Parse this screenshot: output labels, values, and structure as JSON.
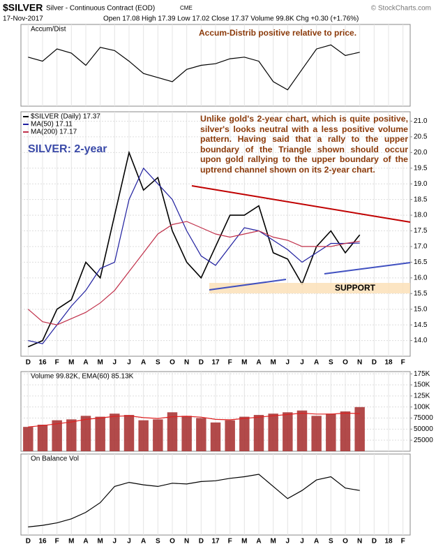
{
  "header": {
    "symbol": "$SILVER",
    "name": "Silver - Continuous Contract (EOD)",
    "exchange": "CME",
    "credit": "© StockCharts.com",
    "date": "17-Nov-2017",
    "quote": "Open 17.08  High 17.39  Low 17.02  Close 17.37  Volume 99.8K  Chg +0.30 (+1.76%)"
  },
  "chart_data": [
    {
      "type": "line",
      "title": "Accum/Dist",
      "annotations": [
        "Accum-Distrib positive relative to price."
      ],
      "ylim": [
        0,
        100
      ],
      "series": [
        {
          "color": "#000000",
          "values": [
            60,
            55,
            70,
            65,
            50,
            72,
            68,
            55,
            40,
            35,
            30,
            45,
            50,
            52,
            58,
            60,
            55,
            30,
            20,
            45,
            70,
            75,
            62,
            66,
            null,
            null,
            null
          ]
        }
      ]
    },
    {
      "type": "line",
      "annotations": [
        "SILVER: 2-year",
        "SUPPORT",
        "Unlike gold's 2-year chart, which is quite positive, silver's looks neutral with a less positive volume pattern. Having said that a rally to the upper boundary of the Triangle shown should occur upon gold rallying to the upper boundary of the uptrend channel shown on its 2-year chart."
      ],
      "categories": [
        "D",
        "16",
        "F",
        "M",
        "A",
        "M",
        "J",
        "J",
        "A",
        "S",
        "O",
        "N",
        "D",
        "17",
        "F",
        "M",
        "A",
        "M",
        "J",
        "J",
        "A",
        "S",
        "O",
        "N",
        "D",
        "18",
        "F"
      ],
      "ylim": [
        13.5,
        21.3
      ],
      "grid": true,
      "yticks": [
        {
          "value": 14,
          "label": "14.0"
        },
        14.5,
        {
          "value": 15,
          "label": "15.0"
        },
        15.5,
        {
          "value": 16,
          "label": "16.0"
        },
        16.5,
        {
          "value": 17,
          "label": "17.0"
        },
        17.5,
        {
          "value": 18,
          "label": "18.0"
        },
        18.5,
        {
          "value": 19,
          "label": "19.0"
        },
        19.5,
        {
          "value": 20,
          "label": "20.0"
        },
        20.5,
        {
          "value": 21,
          "label": "21.0"
        }
      ],
      "series": [
        {
          "name": "$SILVER (Daily) 17.37",
          "color": "#000000",
          "values": [
            13.8,
            14.0,
            15.0,
            15.3,
            16.5,
            16.0,
            18.0,
            20.0,
            18.8,
            19.2,
            17.5,
            16.5,
            16.0,
            17.0,
            18.0,
            18.0,
            18.3,
            16.8,
            16.6,
            15.8,
            17.0,
            17.5,
            16.8,
            17.37,
            null,
            null,
            null
          ]
        },
        {
          "name": "MA(50) 17.11",
          "color": "#1f1f9f",
          "values": [
            14.0,
            13.9,
            14.5,
            15.1,
            15.6,
            16.3,
            16.5,
            18.5,
            19.5,
            19.0,
            18.5,
            17.5,
            16.7,
            16.4,
            17.0,
            17.6,
            17.5,
            17.2,
            16.9,
            16.5,
            16.8,
            17.1,
            17.1,
            17.11,
            null,
            null,
            null
          ]
        },
        {
          "name": "MA(200) 17.17",
          "color": "#c0304a",
          "values": [
            15.0,
            14.6,
            14.5,
            14.7,
            14.9,
            15.2,
            15.6,
            16.2,
            16.8,
            17.4,
            17.7,
            17.8,
            17.6,
            17.4,
            17.3,
            17.4,
            17.5,
            17.3,
            17.2,
            17.0,
            17.0,
            17.0,
            17.1,
            17.17,
            null,
            null,
            null
          ]
        }
      ]
    },
    {
      "type": "bar",
      "title": "Volume 99.82K, EMA(60) 85.13K",
      "ylim": [
        0,
        180000
      ],
      "grid": true,
      "yticks": [
        25000,
        50000,
        75000,
        {
          "value": 100000,
          "label": "100K"
        },
        {
          "value": 125000,
          "label": "125K"
        },
        {
          "value": 150000,
          "label": "150K"
        },
        {
          "value": 175000,
          "label": "175K"
        }
      ],
      "series": [
        {
          "type": "bar",
          "color": "#a52a2a",
          "values": [
            55000,
            60000,
            70000,
            72000,
            80000,
            78000,
            85000,
            82000,
            70000,
            72000,
            88000,
            80000,
            75000,
            65000,
            70000,
            78000,
            82000,
            85000,
            88000,
            92000,
            80000,
            85000,
            90000,
            99820,
            null,
            null,
            null
          ]
        },
        {
          "type": "line",
          "color": "#e02020",
          "values": [
            55000,
            58000,
            62000,
            66000,
            72000,
            75000,
            79000,
            80000,
            76000,
            74000,
            78000,
            79000,
            77000,
            72000,
            71000,
            74000,
            77000,
            80000,
            83000,
            86000,
            84000,
            84000,
            86000,
            85130,
            null,
            null,
            null
          ]
        }
      ]
    },
    {
      "type": "line",
      "title": "On Balance Vol",
      "ylim": [
        0,
        100
      ],
      "categories": [
        "D",
        "16",
        "F",
        "M",
        "A",
        "M",
        "J",
        "J",
        "A",
        "S",
        "O",
        "N",
        "D",
        "17",
        "F",
        "M",
        "A",
        "M",
        "J",
        "J",
        "A",
        "S",
        "O",
        "N",
        "D",
        "18",
        "F"
      ],
      "series": [
        {
          "color": "#000000",
          "values": [
            10,
            12,
            15,
            20,
            28,
            40,
            60,
            65,
            62,
            60,
            64,
            63,
            66,
            67,
            70,
            72,
            75,
            60,
            45,
            55,
            68,
            72,
            58,
            55,
            null,
            null,
            null
          ]
        }
      ]
    }
  ]
}
